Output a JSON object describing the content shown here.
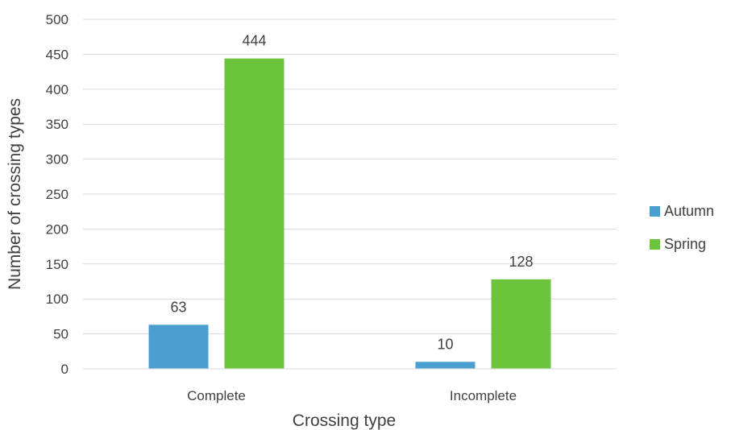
{
  "chart_data": {
    "type": "bar",
    "title": "",
    "xlabel": "Crossing type",
    "ylabel": "Number of crossing types",
    "categories": [
      "Complete",
      "Incomplete"
    ],
    "series": [
      {
        "name": "Autumn",
        "values": [
          63,
          10
        ],
        "color": "#4a9fd0"
      },
      {
        "name": "Spring",
        "values": [
          444,
          128
        ],
        "color": "#6cc43d"
      }
    ],
    "ylim": [
      0,
      500
    ],
    "yticks": [
      "0",
      "50",
      "100",
      "150",
      "200",
      "250",
      "300",
      "350",
      "400",
      "450",
      "500"
    ],
    "grid": true,
    "legend_position": "right",
    "data_labels": true
  }
}
